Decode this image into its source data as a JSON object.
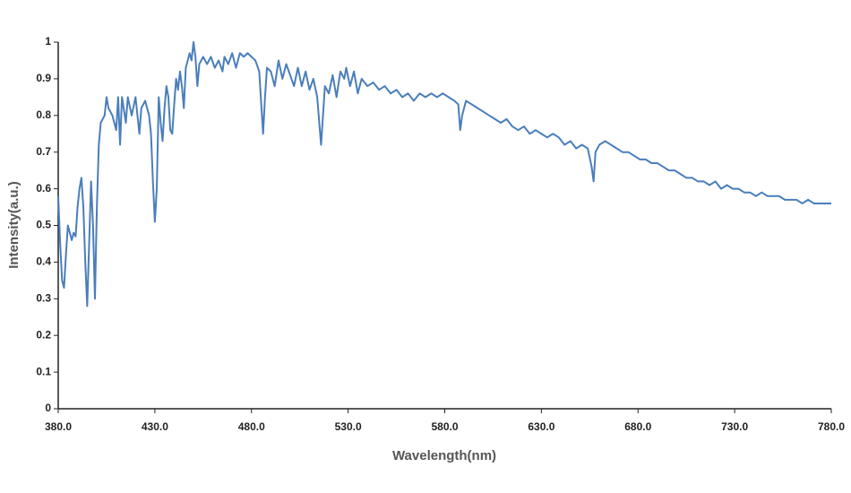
{
  "chart_data": {
    "type": "line",
    "xlabel": "Wavelength(nm)",
    "ylabel": "Intensity(a.u.)",
    "color": "#4a7ebb",
    "grid": false,
    "xlim": [
      380,
      780
    ],
    "xticks": [
      {
        "value": 380,
        "label": "380.0"
      },
      {
        "value": 430,
        "label": "430.0"
      },
      {
        "value": 480,
        "label": "480.0"
      },
      {
        "value": 530,
        "label": "530.0"
      },
      {
        "value": 580,
        "label": "580.0"
      },
      {
        "value": 630,
        "label": "630.0"
      },
      {
        "value": 680,
        "label": "680.0"
      },
      {
        "value": 730,
        "label": "730.0"
      },
      {
        "value": 780,
        "label": "780.0"
      }
    ],
    "ylim": [
      0,
      1
    ],
    "yticks": [
      0,
      0.1,
      0.2,
      0.3,
      0.4,
      0.5,
      0.6,
      0.7,
      0.8,
      0.9,
      1
    ],
    "x": [
      380,
      381,
      382,
      383,
      384,
      385,
      386,
      387,
      388,
      389,
      390,
      391,
      392,
      393,
      394,
      395,
      396,
      397,
      398,
      399,
      400,
      401,
      402,
      404,
      405,
      406,
      408,
      410,
      411,
      412,
      413,
      415,
      416,
      418,
      420,
      422,
      423,
      425,
      427,
      428,
      429,
      430,
      431,
      432,
      433,
      434,
      435,
      436,
      437,
      438,
      439,
      440,
      441,
      442,
      443,
      444,
      445,
      446,
      447,
      448,
      449,
      450,
      451,
      452,
      453,
      455,
      457,
      459,
      461,
      463,
      465,
      466,
      468,
      470,
      472,
      474,
      476,
      478,
      480,
      482,
      484,
      486,
      487,
      488,
      490,
      492,
      494,
      496,
      498,
      500,
      502,
      504,
      506,
      508,
      510,
      512,
      514,
      516,
      517,
      518,
      520,
      522,
      524,
      526,
      528,
      529,
      531,
      533,
      535,
      537,
      540,
      543,
      546,
      549,
      552,
      555,
      558,
      561,
      564,
      567,
      570,
      573,
      576,
      579,
      582,
      585,
      587,
      588,
      589,
      591,
      594,
      597,
      600,
      603,
      606,
      609,
      612,
      615,
      618,
      621,
      624,
      627,
      630,
      633,
      636,
      639,
      642,
      645,
      648,
      651,
      654,
      656,
      657,
      658,
      660,
      663,
      666,
      669,
      672,
      675,
      678,
      681,
      684,
      687,
      690,
      693,
      696,
      699,
      702,
      705,
      708,
      711,
      714,
      717,
      720,
      723,
      726,
      729,
      732,
      735,
      738,
      741,
      744,
      747,
      750,
      753,
      756,
      759,
      762,
      765,
      768,
      771,
      774,
      777,
      780
    ],
    "values": [
      0.58,
      0.45,
      0.35,
      0.33,
      0.42,
      0.5,
      0.48,
      0.46,
      0.48,
      0.47,
      0.55,
      0.6,
      0.63,
      0.55,
      0.4,
      0.28,
      0.45,
      0.62,
      0.5,
      0.3,
      0.55,
      0.72,
      0.78,
      0.8,
      0.85,
      0.82,
      0.8,
      0.76,
      0.85,
      0.72,
      0.85,
      0.78,
      0.85,
      0.8,
      0.85,
      0.75,
      0.82,
      0.84,
      0.8,
      0.75,
      0.62,
      0.51,
      0.6,
      0.85,
      0.78,
      0.73,
      0.82,
      0.88,
      0.85,
      0.76,
      0.75,
      0.83,
      0.9,
      0.87,
      0.92,
      0.88,
      0.82,
      0.93,
      0.95,
      0.97,
      0.95,
      1.0,
      0.96,
      0.88,
      0.94,
      0.96,
      0.94,
      0.96,
      0.93,
      0.95,
      0.92,
      0.96,
      0.94,
      0.97,
      0.93,
      0.97,
      0.96,
      0.97,
      0.96,
      0.95,
      0.92,
      0.75,
      0.85,
      0.93,
      0.92,
      0.88,
      0.95,
      0.9,
      0.94,
      0.91,
      0.88,
      0.93,
      0.88,
      0.92,
      0.87,
      0.9,
      0.85,
      0.72,
      0.8,
      0.88,
      0.86,
      0.91,
      0.85,
      0.92,
      0.9,
      0.93,
      0.88,
      0.92,
      0.86,
      0.9,
      0.88,
      0.89,
      0.87,
      0.88,
      0.86,
      0.87,
      0.85,
      0.86,
      0.84,
      0.86,
      0.85,
      0.86,
      0.85,
      0.86,
      0.85,
      0.84,
      0.83,
      0.76,
      0.8,
      0.84,
      0.83,
      0.82,
      0.81,
      0.8,
      0.79,
      0.78,
      0.79,
      0.77,
      0.76,
      0.77,
      0.75,
      0.76,
      0.75,
      0.74,
      0.75,
      0.74,
      0.72,
      0.73,
      0.71,
      0.72,
      0.71,
      0.66,
      0.62,
      0.7,
      0.72,
      0.73,
      0.72,
      0.71,
      0.7,
      0.7,
      0.69,
      0.68,
      0.68,
      0.67,
      0.67,
      0.66,
      0.65,
      0.65,
      0.64,
      0.63,
      0.63,
      0.62,
      0.62,
      0.61,
      0.62,
      0.6,
      0.61,
      0.6,
      0.6,
      0.59,
      0.59,
      0.58,
      0.59,
      0.58,
      0.58,
      0.58,
      0.57,
      0.57,
      0.57,
      0.56,
      0.57,
      0.56,
      0.56,
      0.56,
      0.56
    ]
  }
}
